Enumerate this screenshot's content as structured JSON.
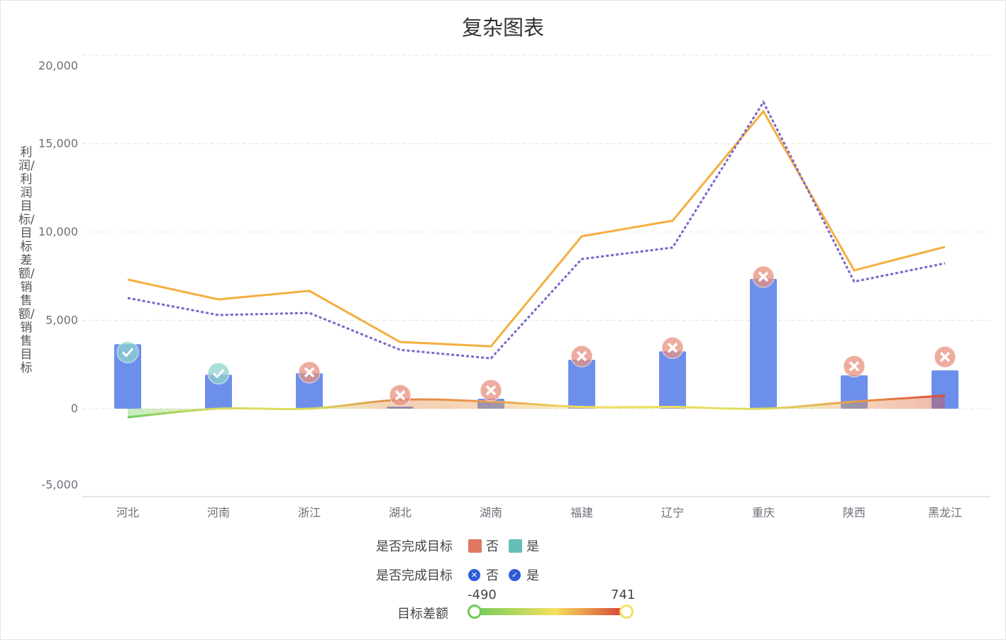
{
  "title": "复杂图表",
  "y_axis_label": "利润/利润目标/目标差额/销售额/销售目标",
  "legend": {
    "bar_legend": {
      "title": "是否完成目标",
      "items": [
        {
          "label": "否",
          "color": "#e07763"
        },
        {
          "label": "是",
          "color": "#65bfb8"
        }
      ]
    },
    "marker_legend": {
      "title": "是否完成目标",
      "items": [
        {
          "label": "否",
          "icon": "x-circle-icon"
        },
        {
          "label": "是",
          "icon": "check-circle-icon"
        }
      ]
    },
    "visual_map": {
      "title": "目标差额",
      "min_label": "-490",
      "max_label": "741",
      "min": -490,
      "max": 741,
      "colors": [
        "#6fcc5a",
        "#f5e060",
        "#d94a37"
      ]
    }
  },
  "chart_data": {
    "type": "bar",
    "title": "复杂图表",
    "ylabel": "利润/利润目标/目标差额/销售额/销售目标",
    "ylim": [
      -5000,
      20000
    ],
    "yticks": [
      "20,000",
      "15,000",
      "10,000",
      "5,000",
      "0",
      "-5,000"
    ],
    "ytick_values": [
      20000,
      15000,
      10000,
      5000,
      0,
      -5000
    ],
    "grid": true,
    "categories": [
      "河北",
      "河南",
      "浙江",
      "湖北",
      "湖南",
      "福建",
      "辽宁",
      "重庆",
      "陕西",
      "黑龙江"
    ],
    "series": [
      {
        "name": "利润",
        "type": "bar",
        "color": "#6d8fec",
        "values": [
          3650,
          1930,
          2010,
          120,
          560,
          2770,
          3250,
          7350,
          1890,
          2170
        ]
      },
      {
        "name": "利润目标",
        "type": "scatter",
        "values": [
          3200,
          2000,
          2060,
          760,
          1040,
          2970,
          3450,
          7470,
          2400,
          2930
        ],
        "achieved": [
          "是",
          "是",
          "否",
          "否",
          "否",
          "否",
          "否",
          "否",
          "否",
          "否"
        ]
      },
      {
        "name": "目标差额",
        "type": "area",
        "values": [
          -490,
          0,
          0,
          500,
          400,
          100,
          100,
          0,
          400,
          741
        ]
      },
      {
        "name": "销售额",
        "type": "line",
        "color": "#f5ae3f",
        "values": [
          7310,
          6185,
          6670,
          3775,
          3530,
          9760,
          10640,
          16830,
          7830,
          9160
        ]
      },
      {
        "name": "销售目标",
        "type": "line",
        "style": "dotted",
        "color": "#7b68c9",
        "values": [
          6265,
          5300,
          5420,
          3330,
          2850,
          8470,
          9120,
          17350,
          7190,
          8230
        ]
      }
    ]
  }
}
